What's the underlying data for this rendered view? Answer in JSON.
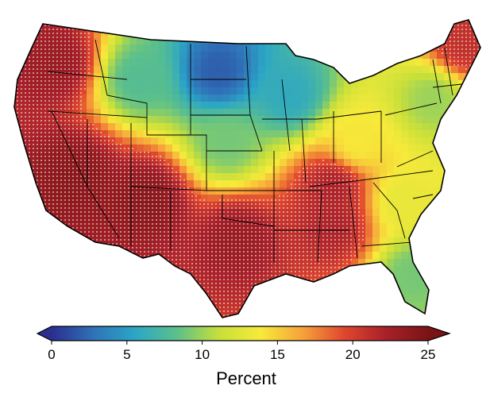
{
  "colorbar": {
    "title": "Percent",
    "min": 0,
    "max": 25,
    "extend": "both",
    "ticks": [
      "0",
      "5",
      "10",
      "15",
      "20",
      "25"
    ],
    "colormap": [
      "#2b2e8f",
      "#2f72b8",
      "#2ba6c6",
      "#5cc08b",
      "#c7df3a",
      "#f7ea3a",
      "#f6a23a",
      "#e0462e",
      "#a8202a",
      "#7a1414"
    ]
  },
  "map": {
    "region": "contiguous-united-states",
    "boundary_color": "#000000",
    "state_lines": true,
    "marker": "dot",
    "regions": [
      {
        "name": "pacific-northwest",
        "value": 23
      },
      {
        "name": "california-great-basin",
        "value": 24
      },
      {
        "name": "northern-rockies",
        "value": 8
      },
      {
        "name": "northern-plains",
        "value": 2
      },
      {
        "name": "central-plains",
        "value": 9
      },
      {
        "name": "four-corners",
        "value": 24
      },
      {
        "name": "southern-plains",
        "value": 23
      },
      {
        "name": "upper-midwest",
        "value": 6
      },
      {
        "name": "ohio-valley",
        "value": 14
      },
      {
        "name": "tennessee-valley",
        "value": 22
      },
      {
        "name": "deep-south",
        "value": 22
      },
      {
        "name": "southeast-coast",
        "value": 13
      },
      {
        "name": "florida",
        "value": 9
      },
      {
        "name": "northeast",
        "value": 10
      },
      {
        "name": "maine",
        "value": 21
      }
    ]
  }
}
